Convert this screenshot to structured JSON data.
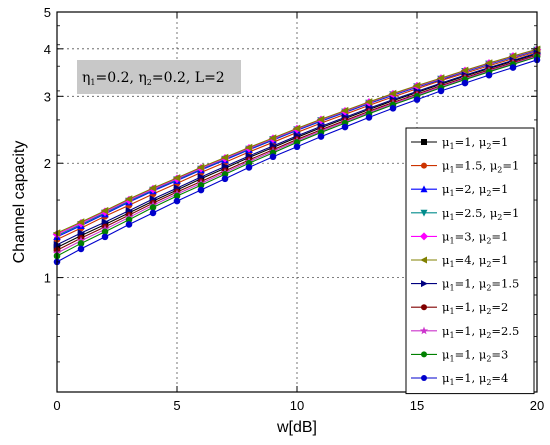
{
  "chart_data": {
    "type": "line",
    "xlabel": "w[dB]",
    "ylabel": "Channel capacity",
    "xlim": [
      0,
      20
    ],
    "ylim": [
      0.5,
      5
    ],
    "yscale": "log",
    "grid": true,
    "legend_position": "right",
    "annotation": {
      "parts": [
        "η",
        "1",
        "=0.2, η",
        "2",
        "=0.2, L=2"
      ],
      "background": "#c8c8c8"
    },
    "x_ticks": [
      0,
      5,
      10,
      15,
      20
    ],
    "y_ticks": [
      1,
      2,
      3,
      4,
      5
    ],
    "x": [
      0,
      1,
      2,
      3,
      4,
      5,
      6,
      7,
      8,
      9,
      10,
      11,
      12,
      13,
      14,
      15,
      16,
      17,
      18,
      19,
      20
    ],
    "series": [
      {
        "label_parts": [
          "μ",
          "1",
          "=1, μ",
          "2",
          "=1"
        ],
        "marker": "square",
        "color": "#000000",
        "values": [
          1.2,
          1.29,
          1.38,
          1.48,
          1.59,
          1.7,
          1.82,
          1.94,
          2.07,
          2.2,
          2.34,
          2.48,
          2.62,
          2.77,
          2.92,
          3.07,
          3.23,
          3.39,
          3.55,
          3.71,
          3.88
        ]
      },
      {
        "label_parts": [
          "μ",
          "1",
          "=1.5, μ",
          "2",
          "=1"
        ],
        "marker": "circle",
        "color": "#cc3300",
        "values": [
          1.26,
          1.35,
          1.45,
          1.55,
          1.66,
          1.77,
          1.89,
          2.01,
          2.14,
          2.27,
          2.41,
          2.55,
          2.69,
          2.84,
          2.99,
          3.14,
          3.3,
          3.45,
          3.61,
          3.77,
          3.93
        ]
      },
      {
        "label_parts": [
          "μ",
          "1",
          "=2, μ",
          "2",
          "=1"
        ],
        "marker": "triangle-up",
        "color": "#0000ff",
        "values": [
          1.28,
          1.37,
          1.47,
          1.58,
          1.69,
          1.8,
          1.92,
          2.04,
          2.17,
          2.3,
          2.44,
          2.58,
          2.72,
          2.87,
          3.02,
          3.17,
          3.32,
          3.48,
          3.64,
          3.8,
          3.96
        ]
      },
      {
        "label_parts": [
          "μ",
          "1",
          "=2.5, μ",
          "2",
          "=1"
        ],
        "marker": "triangle-down",
        "color": "#008b8b",
        "values": [
          1.29,
          1.38,
          1.48,
          1.59,
          1.7,
          1.81,
          1.93,
          2.05,
          2.18,
          2.31,
          2.45,
          2.59,
          2.73,
          2.88,
          3.03,
          3.18,
          3.33,
          3.49,
          3.65,
          3.81,
          3.97
        ]
      },
      {
        "label_parts": [
          "μ",
          "1",
          "=3, μ",
          "2",
          "=1"
        ],
        "marker": "diamond",
        "color": "#ff00ff",
        "values": [
          1.3,
          1.39,
          1.49,
          1.6,
          1.71,
          1.82,
          1.94,
          2.06,
          2.19,
          2.32,
          2.46,
          2.6,
          2.74,
          2.89,
          3.04,
          3.19,
          3.34,
          3.5,
          3.66,
          3.82,
          3.98
        ]
      },
      {
        "label_parts": [
          "μ",
          "1",
          "=4, μ",
          "2",
          "=1"
        ],
        "marker": "triangle-left",
        "color": "#808000",
        "values": [
          1.31,
          1.4,
          1.5,
          1.61,
          1.72,
          1.83,
          1.95,
          2.07,
          2.2,
          2.33,
          2.47,
          2.61,
          2.75,
          2.9,
          3.05,
          3.2,
          3.35,
          3.51,
          3.67,
          3.83,
          3.99
        ]
      },
      {
        "label_parts": [
          "μ",
          "1",
          "=1, μ",
          "2",
          "=1.5"
        ],
        "marker": "triangle-right",
        "color": "#000080",
        "values": [
          1.22,
          1.31,
          1.4,
          1.5,
          1.61,
          1.72,
          1.84,
          1.96,
          2.09,
          2.22,
          2.36,
          2.5,
          2.64,
          2.79,
          2.94,
          3.09,
          3.25,
          3.41,
          3.57,
          3.73,
          3.9
        ]
      },
      {
        "label_parts": [
          "μ",
          "1",
          "=1, μ",
          "2",
          "=2"
        ],
        "marker": "circle",
        "color": "#800000",
        "values": [
          1.18,
          1.27,
          1.36,
          1.46,
          1.57,
          1.68,
          1.79,
          1.91,
          2.04,
          2.17,
          2.31,
          2.45,
          2.59,
          2.74,
          2.89,
          3.04,
          3.2,
          3.36,
          3.52,
          3.68,
          3.85
        ]
      },
      {
        "label_parts": [
          "μ",
          "1",
          "=1, μ",
          "2",
          "=2.5"
        ],
        "marker": "star",
        "color": "#cc33cc",
        "values": [
          1.16,
          1.25,
          1.34,
          1.44,
          1.55,
          1.66,
          1.77,
          1.89,
          2.02,
          2.15,
          2.29,
          2.43,
          2.57,
          2.72,
          2.87,
          3.02,
          3.18,
          3.34,
          3.5,
          3.66,
          3.83
        ]
      },
      {
        "label_parts": [
          "μ",
          "1",
          "=1, μ",
          "2",
          "=3"
        ],
        "marker": "circle",
        "color": "#008000",
        "values": [
          1.14,
          1.23,
          1.32,
          1.42,
          1.53,
          1.64,
          1.75,
          1.87,
          2.0,
          2.13,
          2.27,
          2.41,
          2.55,
          2.7,
          2.85,
          3.0,
          3.16,
          3.32,
          3.48,
          3.64,
          3.81
        ]
      },
      {
        "label_parts": [
          "μ",
          "1",
          "=1, μ",
          "2",
          "=4"
        ],
        "marker": "circle",
        "color": "#0000cc",
        "values": [
          1.1,
          1.19,
          1.28,
          1.38,
          1.48,
          1.59,
          1.7,
          1.82,
          1.95,
          2.08,
          2.21,
          2.35,
          2.49,
          2.64,
          2.79,
          2.94,
          3.1,
          3.25,
          3.41,
          3.57,
          3.74
        ]
      }
    ]
  }
}
